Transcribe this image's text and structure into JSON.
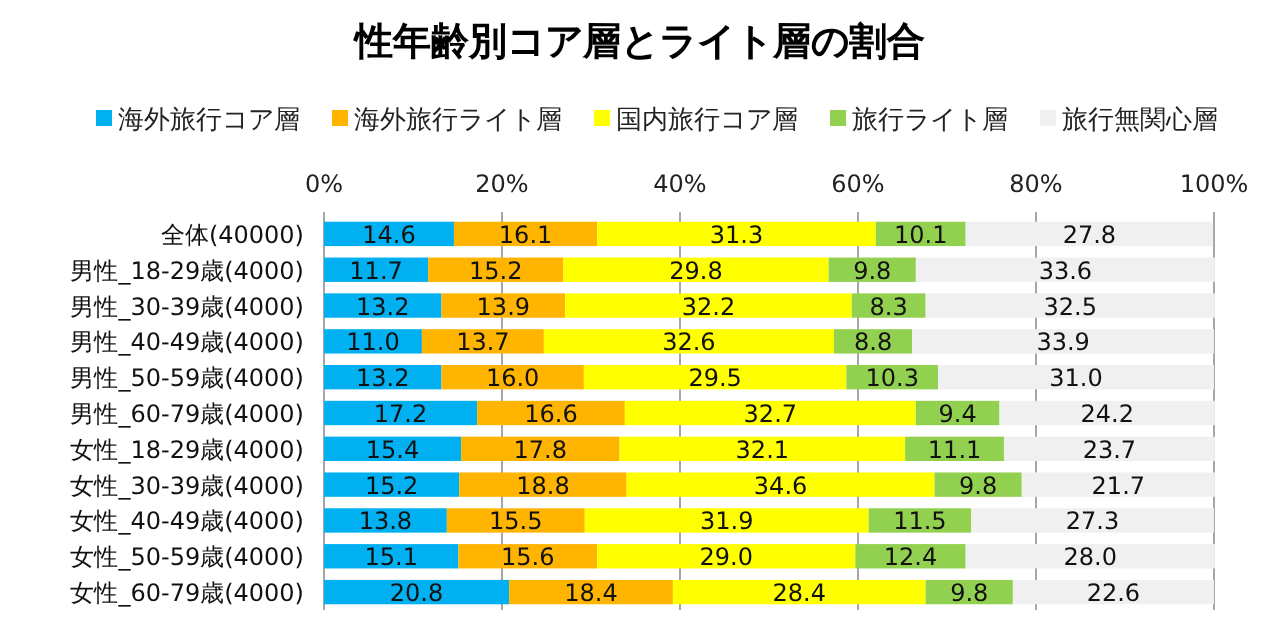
{
  "chart_data": {
    "type": "bar",
    "orientation": "horizontal",
    "stacked": true,
    "title": "性年齢別コア層とライト層の割合",
    "categories": [
      "全体(40000)",
      "男性_18-29歳(4000)",
      "男性_30-39歳(4000)",
      "男性_40-49歳(4000)",
      "男性_50-59歳(4000)",
      "男性_60-79歳(4000)",
      "女性_18-29歳(4000)",
      "女性_30-39歳(4000)",
      "女性_40-49歳(4000)",
      "女性_50-59歳(4000)",
      "女性_60-79歳(4000)"
    ],
    "series": [
      {
        "name": "海外旅行コア層",
        "color": "#00b0f0",
        "values": [
          14.6,
          11.7,
          13.2,
          11.0,
          13.2,
          17.2,
          15.4,
          15.2,
          13.8,
          15.1,
          20.8
        ],
        "value_labels": [
          "14.6",
          "11.7",
          "13.2",
          "11.0",
          "13.2",
          "17.2",
          "15.4",
          "15.2",
          "13.8",
          "15.1",
          "20.8"
        ]
      },
      {
        "name": "海外旅行ライト層",
        "color": "#ffb400",
        "values": [
          16.1,
          15.2,
          13.9,
          13.7,
          16.0,
          16.6,
          17.8,
          18.8,
          15.5,
          15.6,
          18.4
        ],
        "value_labels": [
          "16.1",
          "15.2",
          "13.9",
          "13.7",
          "16.0",
          "16.6",
          "17.8",
          "18.8",
          "15.5",
          "15.6",
          "18.4"
        ]
      },
      {
        "name": "国内旅行コア層",
        "color": "#ffff00",
        "values": [
          31.3,
          29.8,
          32.2,
          32.6,
          29.5,
          32.7,
          32.1,
          34.6,
          31.9,
          29.0,
          28.4
        ],
        "value_labels": [
          "31.3",
          "29.8",
          "32.2",
          "32.6",
          "29.5",
          "32.7",
          "32.1",
          "34.6",
          "31.9",
          "29.0",
          "28.4"
        ]
      },
      {
        "name": "旅行ライト層",
        "color": "#92d050",
        "values": [
          10.1,
          9.8,
          8.3,
          8.8,
          10.3,
          9.4,
          11.1,
          9.8,
          11.5,
          12.4,
          9.8
        ],
        "value_labels": [
          "10.1",
          "9.8",
          "8.3",
          "8.8",
          "10.3",
          "9.4",
          "11.1",
          "9.8",
          "11.5",
          "12.4",
          "9.8"
        ]
      },
      {
        "name": "旅行無関心層",
        "color": "#f0f0f0",
        "values": [
          27.8,
          33.6,
          32.5,
          33.9,
          31.0,
          24.2,
          23.7,
          21.7,
          27.3,
          28.0,
          22.6
        ],
        "value_labels": [
          "27.8",
          "33.6",
          "32.5",
          "33.9",
          "31.0",
          "24.2",
          "23.7",
          "21.7",
          "27.3",
          "28.0",
          "22.6"
        ]
      }
    ],
    "xlim": [
      0,
      100
    ],
    "xticks": [
      {
        "value": 0,
        "label": "0%"
      },
      {
        "value": 20,
        "label": "20%"
      },
      {
        "value": 40,
        "label": "40%"
      },
      {
        "value": 60,
        "label": "60%"
      },
      {
        "value": 80,
        "label": "80%"
      },
      {
        "value": 100,
        "label": "100%"
      }
    ],
    "grid": "x",
    "legend": "top"
  }
}
